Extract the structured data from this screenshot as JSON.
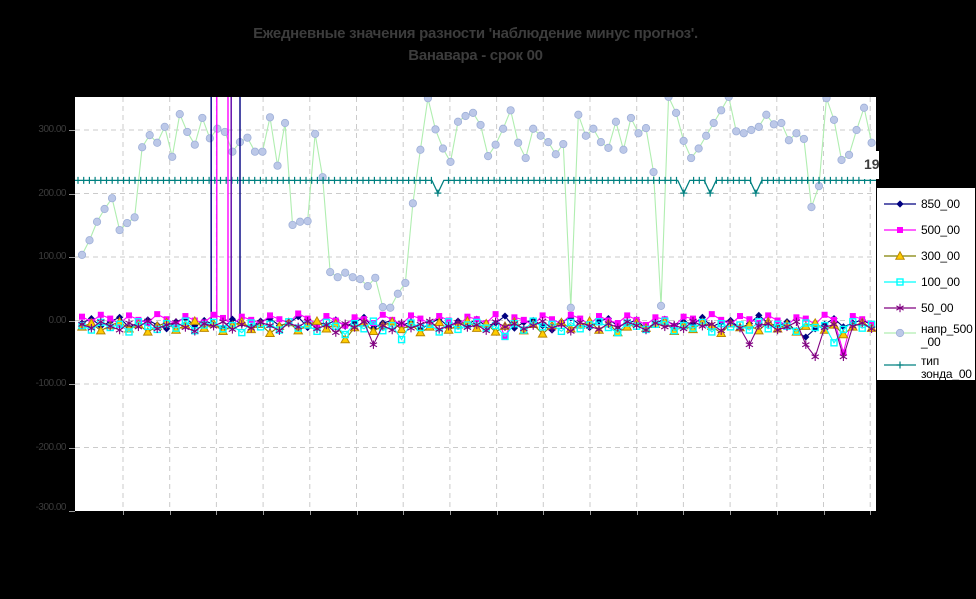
{
  "title": {
    "line1": "Ежедневные значения разности 'наблюдение минус прогноз'.",
    "line2": "Ванавара - срок 00"
  },
  "partial_value_label": "19",
  "colors": {
    "page_bg": "#000000",
    "plot_bg": "#ffffff",
    "grid": "#cbcbcb",
    "text": "#3c3c3c",
    "legend_text": "#000000",
    "spike_violet": "#5e00a8"
  },
  "y_axis": {
    "labels": [
      "300.00",
      "200.00",
      "100.00",
      "0.00",
      "-100.00",
      "-200.00",
      "-300.00"
    ],
    "min": -300,
    "max": 350,
    "gridline_step": 100
  },
  "legend": {
    "items": [
      {
        "label": "850_00"
      },
      {
        "label": "500_00"
      },
      {
        "label": "300_00"
      },
      {
        "label": "100_00"
      },
      {
        "label": "50_00"
      },
      {
        "label": "напр_500\n_00"
      },
      {
        "label": "тип\nзонда_00"
      }
    ]
  },
  "chart_data": {
    "type": "line",
    "title": "Ежедневные значения разности 'наблюдение минус прогноз'. Ванавара - срок 00",
    "grid": true,
    "legend_position": "right",
    "ylim": [
      -300,
      350
    ],
    "series": [
      {
        "name": "850_00",
        "color": "#000080",
        "marker": "diamond",
        "values": [
          -4,
          3,
          -9,
          -2,
          5,
          -11,
          -3,
          1,
          -7,
          -13,
          -2,
          4,
          -8,
          0,
          -6,
          -12,
          2,
          -5,
          -10,
          -1,
          3,
          -8,
          -4,
          6,
          -11,
          -2,
          -7,
          1,
          -9,
          -3,
          5,
          -12,
          -4,
          0,
          -8,
          -2,
          -14,
          -5,
          3,
          -10,
          -1,
          -6,
          2,
          -9,
          -4,
          7,
          -12,
          -3,
          0,
          -8,
          -15,
          -2,
          4,
          -7,
          -11,
          -1,
          3,
          -9,
          -5,
          1,
          -13,
          -4,
          2,
          -8,
          -2,
          -6,
          5,
          -10,
          -3,
          0,
          -12,
          -5,
          8,
          -4,
          -9,
          -2,
          -18,
          -26,
          -13,
          -6,
          3,
          -10,
          -4,
          1,
          -7
        ]
      },
      {
        "name": "500_00",
        "color": "#ff00ff",
        "marker": "square",
        "values": [
          6,
          -2,
          9,
          3,
          -5,
          8,
          1,
          -4,
          10,
          2,
          -6,
          7,
          0,
          -3,
          9,
          4,
          -7,
          6,
          1,
          -5,
          8,
          2,
          -4,
          11,
          3,
          -6,
          7,
          0,
          -8,
          5,
          2,
          -4,
          9,
          1,
          -6,
          8,
          3,
          -5,
          7,
          0,
          -9,
          6,
          2,
          -4,
          10,
          -26,
          5,
          1,
          -7,
          8,
          2,
          -5,
          9,
          3,
          -6,
          7,
          0,
          -4,
          8,
          1,
          -7,
          5,
          2,
          -9,
          6,
          3,
          -5,
          10,
          1,
          -6,
          7,
          2,
          -4,
          8,
          0,
          -8,
          5,
          3,
          -6,
          9,
          1,
          -50,
          7,
          2,
          -5
        ]
      },
      {
        "name": "300_00",
        "color": "#808000",
        "marker": "triangle",
        "marker_fill": "#ffcc00",
        "values": [
          -10,
          -4,
          -16,
          -8,
          -2,
          -13,
          -6,
          -18,
          -9,
          -3,
          -15,
          -7,
          -1,
          -12,
          -5,
          -17,
          -8,
          -2,
          -14,
          -6,
          -20,
          -9,
          -3,
          -16,
          -7,
          -1,
          -13,
          -5,
          -30,
          -11,
          -4,
          -17,
          -8,
          -2,
          -14,
          -6,
          -19,
          -10,
          -3,
          -15,
          -7,
          -1,
          -12,
          -5,
          -18,
          -9,
          -2,
          -16,
          -6,
          -21,
          -8,
          -3,
          -13,
          -7,
          -1,
          -15,
          -5,
          -19,
          -10,
          -4,
          -12,
          -6,
          -2,
          -17,
          -8,
          -14,
          -3,
          -9,
          -20,
          -5,
          -11,
          -7,
          -16,
          -2,
          -13,
          -6,
          -18,
          -9,
          -4,
          -15,
          -7,
          -22,
          -10,
          -3,
          -12
        ]
      },
      {
        "name": "100_00",
        "color": "#00ffff",
        "marker": "open-square",
        "values": [
          -8,
          -15,
          -3,
          -11,
          -6,
          -18,
          -2,
          -9,
          -14,
          -5,
          -12,
          -1,
          -16,
          -7,
          -3,
          -13,
          -8,
          -19,
          -4,
          -10,
          -6,
          -15,
          -2,
          -12,
          -7,
          -17,
          -3,
          -9,
          -22,
          -5,
          -13,
          -1,
          -16,
          -8,
          -30,
          -4,
          -11,
          -6,
          -18,
          -2,
          -14,
          -7,
          -3,
          -12,
          -8,
          -25,
          -5,
          -15,
          -1,
          -10,
          -6,
          -17,
          -3,
          -13,
          -7,
          -2,
          -11,
          -19,
          -4,
          -9,
          -14,
          -6,
          -1,
          -16,
          -8,
          -12,
          -3,
          -18,
          -5,
          -10,
          -7,
          -15,
          -2,
          -13,
          -6,
          -9,
          -17,
          -4,
          -11,
          -8,
          -35,
          -14,
          -2,
          -12,
          -6
        ]
      },
      {
        "name": "50_00",
        "color": "#800080",
        "marker": "asterisk",
        "values": [
          -6,
          -12,
          -2,
          -9,
          -15,
          -4,
          -10,
          -1,
          -13,
          -7,
          -3,
          -11,
          -17,
          -5,
          -9,
          -2,
          -14,
          -6,
          -12,
          -3,
          -8,
          -16,
          -4,
          -10,
          -1,
          -13,
          -7,
          -19,
          -5,
          -11,
          -2,
          -38,
          -8,
          -15,
          -4,
          -12,
          -6,
          -1,
          -14,
          -9,
          -3,
          -11,
          -7,
          -16,
          -2,
          -10,
          -5,
          -13,
          -8,
          -1,
          -12,
          -6,
          -17,
          -3,
          -9,
          -14,
          -5,
          -11,
          -2,
          -8,
          -15,
          -4,
          -10,
          -7,
          -13,
          -1,
          -9,
          -6,
          -16,
          -3,
          -12,
          -38,
          -8,
          -5,
          -15,
          -10,
          -2,
          -38,
          -57,
          -11,
          -6,
          -57,
          -9,
          -4,
          -13
        ]
      },
      {
        "name": "напр_500_00",
        "color": "#b0eeb0",
        "marker": "circle",
        "marker_fill": "#bcc8e8",
        "marker_edge": "#9fb0d8",
        "values": [
          103,
          126,
          155,
          175,
          192,
          142,
          153,
          162,
          272,
          291,
          279,
          304,
          257,
          324,
          296,
          276,
          318,
          286,
          301,
          296,
          265,
          280,
          287,
          265,
          265,
          319,
          243,
          310,
          150,
          155,
          156,
          293,
          225,
          76,
          68,
          75,
          68,
          65,
          54,
          67,
          21,
          20,
          42,
          59,
          184,
          268,
          349,
          300,
          270,
          249,
          312,
          321,
          326,
          307,
          258,
          276,
          301,
          330,
          279,
          255,
          301,
          290,
          280,
          261,
          277,
          20,
          323,
          290,
          301,
          280,
          271,
          312,
          268,
          318,
          294,
          302,
          233,
          23,
          351,
          326,
          282,
          255,
          270,
          290,
          310,
          330,
          351,
          297,
          294,
          299,
          304,
          323,
          308,
          310,
          283,
          294,
          285,
          178,
          211,
          349,
          315,
          252,
          260,
          299,
          334,
          279
        ]
      },
      {
        "name": "тип зонда_00",
        "color": "#008080",
        "marker": "plus",
        "constant_value": 220,
        "dip_value": 200,
        "dip_positions": [
          0.453,
          0.76,
          0.793,
          0.85
        ]
      }
    ],
    "spikes": [
      {
        "position": 0.17,
        "color": "#000080"
      },
      {
        "position": 0.177,
        "color": "#ff00ff"
      },
      {
        "position": 0.191,
        "color": "#ff00ff"
      },
      {
        "position": 0.195,
        "color": "#5e00a8"
      },
      {
        "position": 0.206,
        "color": "#000080"
      }
    ]
  }
}
